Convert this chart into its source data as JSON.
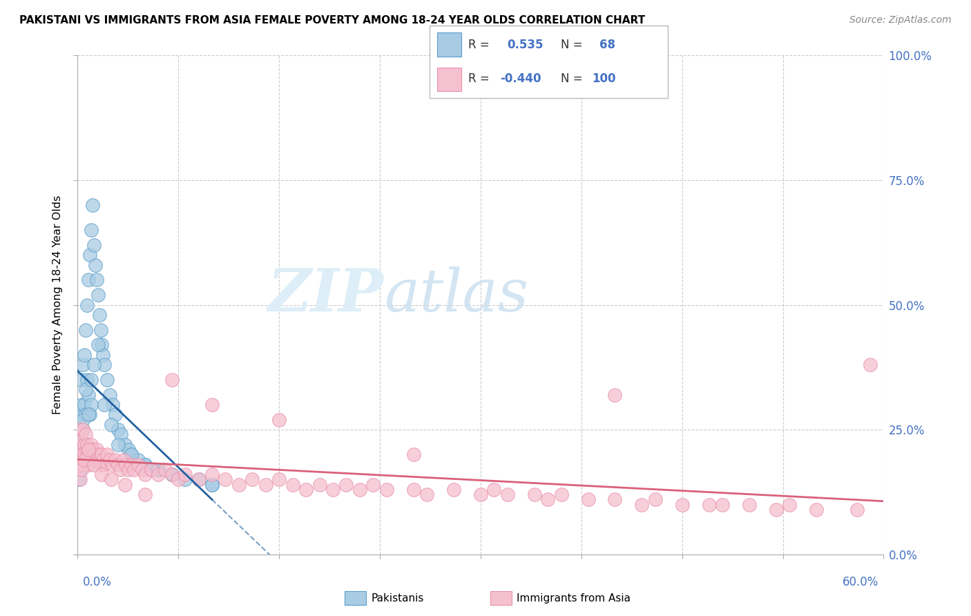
{
  "title": "PAKISTANI VS IMMIGRANTS FROM ASIA FEMALE POVERTY AMONG 18-24 YEAR OLDS CORRELATION CHART",
  "source": "Source: ZipAtlas.com",
  "ylabel": "Female Poverty Among 18-24 Year Olds",
  "xlim": [
    0,
    0.6
  ],
  "ylim": [
    0,
    1.0
  ],
  "blue_color": "#a8cce4",
  "blue_edge": "#5b9dc9",
  "pink_color": "#f5c0d0",
  "pink_edge": "#e890a8",
  "blue_line_color": "#2060a0",
  "pink_line_color": "#d9607a",
  "grid_color": "#cccccc",
  "right_label_color": "#4472c4",
  "blue_x": [
    0.001,
    0.001,
    0.002,
    0.002,
    0.002,
    0.003,
    0.003,
    0.003,
    0.004,
    0.004,
    0.004,
    0.005,
    0.005,
    0.005,
    0.006,
    0.006,
    0.007,
    0.007,
    0.008,
    0.008,
    0.009,
    0.009,
    0.01,
    0.01,
    0.011,
    0.012,
    0.013,
    0.014,
    0.015,
    0.016,
    0.017,
    0.018,
    0.019,
    0.02,
    0.022,
    0.024,
    0.026,
    0.028,
    0.03,
    0.032,
    0.035,
    0.038,
    0.04,
    0.045,
    0.05,
    0.055,
    0.06,
    0.07,
    0.08,
    0.09,
    0.1,
    0.001,
    0.002,
    0.003,
    0.004,
    0.006,
    0.008,
    0.01,
    0.012,
    0.015,
    0.02,
    0.025,
    0.03,
    0.04,
    0.05,
    0.06,
    0.07,
    0.1
  ],
  "blue_y": [
    0.2,
    0.25,
    0.22,
    0.28,
    0.18,
    0.3,
    0.35,
    0.2,
    0.38,
    0.25,
    0.18,
    0.4,
    0.3,
    0.22,
    0.45,
    0.28,
    0.5,
    0.35,
    0.55,
    0.32,
    0.6,
    0.28,
    0.65,
    0.3,
    0.7,
    0.62,
    0.58,
    0.55,
    0.52,
    0.48,
    0.45,
    0.42,
    0.4,
    0.38,
    0.35,
    0.32,
    0.3,
    0.28,
    0.25,
    0.24,
    0.22,
    0.21,
    0.2,
    0.19,
    0.18,
    0.17,
    0.17,
    0.16,
    0.15,
    0.15,
    0.14,
    0.15,
    0.17,
    0.22,
    0.27,
    0.33,
    0.28,
    0.35,
    0.38,
    0.42,
    0.3,
    0.26,
    0.22,
    0.2,
    0.18,
    0.17,
    0.16,
    0.14
  ],
  "pink_x": [
    0.001,
    0.001,
    0.002,
    0.002,
    0.003,
    0.003,
    0.004,
    0.004,
    0.005,
    0.005,
    0.006,
    0.006,
    0.007,
    0.007,
    0.008,
    0.008,
    0.009,
    0.01,
    0.01,
    0.011,
    0.012,
    0.013,
    0.014,
    0.015,
    0.016,
    0.017,
    0.018,
    0.019,
    0.02,
    0.022,
    0.024,
    0.026,
    0.028,
    0.03,
    0.032,
    0.034,
    0.036,
    0.038,
    0.04,
    0.042,
    0.045,
    0.048,
    0.05,
    0.055,
    0.06,
    0.065,
    0.07,
    0.075,
    0.08,
    0.09,
    0.1,
    0.11,
    0.12,
    0.13,
    0.14,
    0.15,
    0.16,
    0.17,
    0.18,
    0.19,
    0.2,
    0.21,
    0.22,
    0.23,
    0.25,
    0.26,
    0.28,
    0.3,
    0.31,
    0.32,
    0.34,
    0.35,
    0.36,
    0.38,
    0.4,
    0.42,
    0.43,
    0.45,
    0.47,
    0.48,
    0.5,
    0.52,
    0.53,
    0.55,
    0.58,
    0.59,
    0.002,
    0.003,
    0.005,
    0.008,
    0.012,
    0.018,
    0.025,
    0.035,
    0.05,
    0.07,
    0.1,
    0.15,
    0.25,
    0.4
  ],
  "pink_y": [
    0.2,
    0.25,
    0.22,
    0.18,
    0.23,
    0.2,
    0.25,
    0.18,
    0.22,
    0.2,
    0.24,
    0.19,
    0.22,
    0.2,
    0.21,
    0.18,
    0.2,
    0.22,
    0.19,
    0.21,
    0.2,
    0.19,
    0.21,
    0.2,
    0.19,
    0.18,
    0.2,
    0.19,
    0.18,
    0.2,
    0.19,
    0.18,
    0.19,
    0.18,
    0.17,
    0.19,
    0.18,
    0.17,
    0.18,
    0.17,
    0.18,
    0.17,
    0.16,
    0.17,
    0.16,
    0.17,
    0.16,
    0.15,
    0.16,
    0.15,
    0.16,
    0.15,
    0.14,
    0.15,
    0.14,
    0.15,
    0.14,
    0.13,
    0.14,
    0.13,
    0.14,
    0.13,
    0.14,
    0.13,
    0.13,
    0.12,
    0.13,
    0.12,
    0.13,
    0.12,
    0.12,
    0.11,
    0.12,
    0.11,
    0.11,
    0.1,
    0.11,
    0.1,
    0.1,
    0.1,
    0.1,
    0.09,
    0.1,
    0.09,
    0.09,
    0.38,
    0.15,
    0.17,
    0.19,
    0.21,
    0.18,
    0.16,
    0.15,
    0.14,
    0.12,
    0.35,
    0.3,
    0.27,
    0.2,
    0.32
  ]
}
